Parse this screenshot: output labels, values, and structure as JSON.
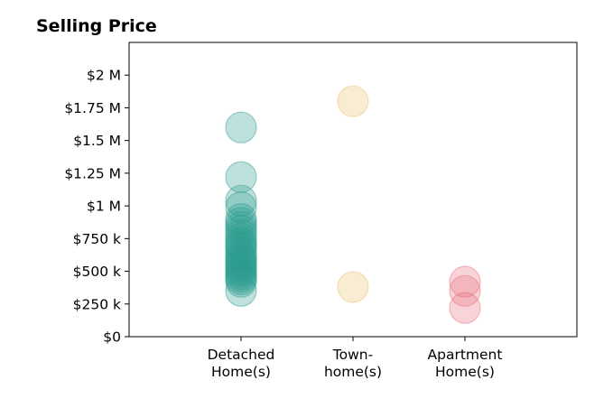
{
  "chart_data": {
    "type": "scatter",
    "title": "Selling Price",
    "xlabel": "",
    "ylabel": "",
    "categories": [
      [
        "Detached",
        "Home(s)"
      ],
      [
        "Town-",
        "home(s)"
      ],
      [
        "Apartment",
        "Home(s)"
      ]
    ],
    "y_ticks": [
      {
        "value": 0,
        "label": "$0"
      },
      {
        "value": 250000,
        "label": "$250 k"
      },
      {
        "value": 500000,
        "label": "$500 k"
      },
      {
        "value": 750000,
        "label": "$750 k"
      },
      {
        "value": 1000000,
        "label": "$1 M"
      },
      {
        "value": 1250000,
        "label": "$1.25 M"
      },
      {
        "value": 1500000,
        "label": "$1.5 M"
      },
      {
        "value": 1750000,
        "label": "$1.75 M"
      },
      {
        "value": 2000000,
        "label": "$2 M"
      }
    ],
    "ylim": [
      0,
      2250000
    ],
    "grid": false,
    "series": [
      {
        "category_index": 0,
        "color": "#2a9d8f",
        "values": [
          1600000,
          1220000,
          1040000,
          990000,
          900000,
          870000,
          840000,
          810000,
          780000,
          750000,
          720000,
          700000,
          680000,
          650000,
          620000,
          600000,
          580000,
          560000,
          540000,
          520000,
          500000,
          480000,
          460000,
          440000,
          420000,
          350000
        ]
      },
      {
        "category_index": 1,
        "color": "#e9c46a",
        "values": [
          1800000,
          380000
        ]
      },
      {
        "category_index": 2,
        "color": "#e76f7e",
        "values": [
          420000,
          350000,
          220000
        ]
      }
    ]
  }
}
